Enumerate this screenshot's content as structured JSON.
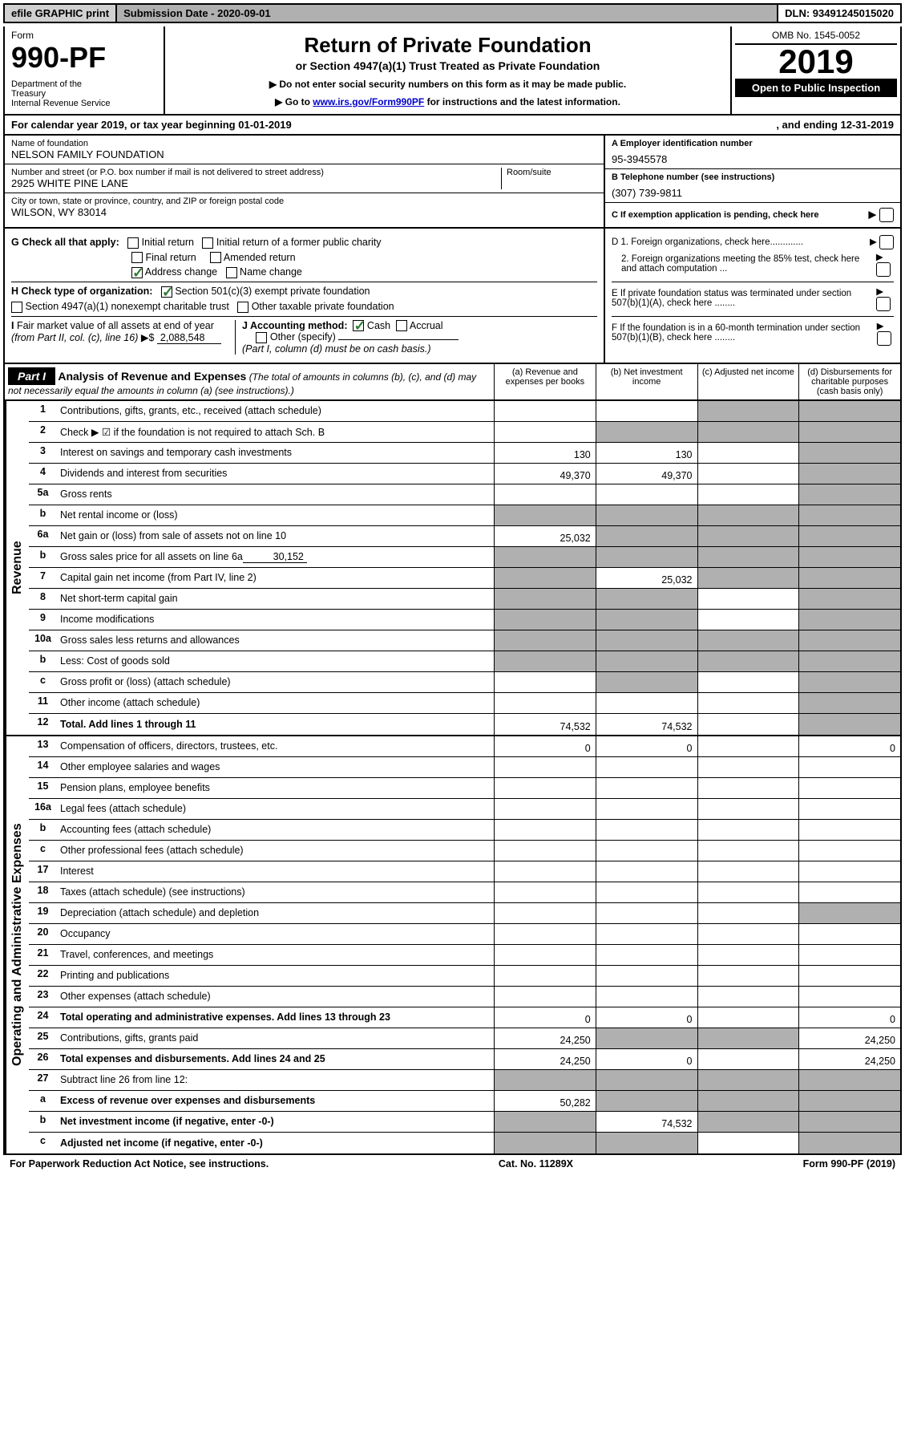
{
  "top_bar": {
    "efile": "efile GRAPHIC print",
    "submission": "Submission Date - 2020-09-01",
    "dln": "DLN: 93491245015020"
  },
  "header": {
    "form_label": "Form",
    "form_number": "990-PF",
    "dept": "Department of the Treasury\nInternal Revenue Service",
    "title": "Return of Private Foundation",
    "subtitle": "or Section 4947(a)(1) Trust Treated as Private Foundation",
    "instr1": "▶ Do not enter social security numbers on this form as it may be made public.",
    "instr2_prefix": "▶ Go to ",
    "instr2_link": "www.irs.gov/Form990PF",
    "instr2_suffix": " for instructions and the latest information.",
    "omb": "OMB No. 1545-0052",
    "year": "2019",
    "open_public": "Open to Public Inspection"
  },
  "calendar": {
    "begin_label": "For calendar year 2019, or tax year beginning ",
    "begin_date": "01-01-2019",
    "end_label": ", and ending ",
    "end_date": "12-31-2019"
  },
  "identity": {
    "name_label": "Name of foundation",
    "name": "NELSON FAMILY FOUNDATION",
    "addr_label": "Number and street (or P.O. box number if mail is not delivered to street address)",
    "addr": "2925 WHITE PINE LANE",
    "room_label": "Room/suite",
    "city_label": "City or town, state or province, country, and ZIP or foreign postal code",
    "city": "WILSON, WY  83014",
    "a_label": "A Employer identification number",
    "ein": "95-3945578",
    "b_label": "B Telephone number (see instructions)",
    "phone": "(307) 739-9811",
    "c_label": "C If exemption application is pending, check here"
  },
  "checks": {
    "g_label": "G Check all that apply:",
    "g_opts": [
      "Initial return",
      "Initial return of a former public charity",
      "Final return",
      "Amended return",
      "Address change",
      "Name change"
    ],
    "h_label": "H Check type of organization:",
    "h_opts": [
      "Section 501(c)(3) exempt private foundation",
      "Section 4947(a)(1) nonexempt charitable trust",
      "Other taxable private foundation"
    ],
    "i_label": "I Fair market value of all assets at end of year (from Part II, col. (c), line 16) ▶$",
    "i_value": "2,088,548",
    "j_label": "J Accounting method:",
    "j_opts": [
      "Cash",
      "Accrual",
      "Other (specify)"
    ],
    "j_note": "(Part I, column (d) must be on cash basis.)",
    "d1": "D 1. Foreign organizations, check here.............",
    "d2": "2. Foreign organizations meeting the 85% test, check here and attach computation ...",
    "e": "E If private foundation status was terminated under section 507(b)(1)(A), check here ........",
    "f": "F If the foundation is in a 60-month termination under section 507(b)(1)(B), check here ........"
  },
  "part1": {
    "label": "Part I",
    "title": "Analysis of Revenue and Expenses",
    "note": "(The total of amounts in columns (b), (c), and (d) may not necessarily equal the amounts in column (a) (see instructions).)",
    "col_a": "(a) Revenue and expenses per books",
    "col_b": "(b) Net investment income",
    "col_c": "(c) Adjusted net income",
    "col_d": "(d) Disbursements for charitable purposes (cash basis only)"
  },
  "revenue_label": "Revenue",
  "expenses_label": "Operating and Administrative Expenses",
  "rows": [
    {
      "n": "1",
      "d": "Contributions, gifts, grants, etc., received (attach schedule)",
      "a": "",
      "b": "",
      "c": "s",
      "dd": "s"
    },
    {
      "n": "2",
      "d": "Check ▶ ☑ if the foundation is not required to attach Sch. B",
      "a": "",
      "b": "s",
      "c": "s",
      "dd": "s"
    },
    {
      "n": "3",
      "d": "Interest on savings and temporary cash investments",
      "a": "130",
      "b": "130",
      "c": "",
      "dd": "s"
    },
    {
      "n": "4",
      "d": "Dividends and interest from securities",
      "a": "49,370",
      "b": "49,370",
      "c": "",
      "dd": "s"
    },
    {
      "n": "5a",
      "d": "Gross rents",
      "a": "",
      "b": "",
      "c": "",
      "dd": "s"
    },
    {
      "n": "b",
      "d": "Net rental income or (loss)",
      "a": "s",
      "b": "s",
      "c": "s",
      "dd": "s"
    },
    {
      "n": "6a",
      "d": "Net gain or (loss) from sale of assets not on line 10",
      "a": "25,032",
      "b": "s",
      "c": "s",
      "dd": "s"
    },
    {
      "n": "b",
      "d": "Gross sales price for all assets on line 6a ________",
      "v": "30,152",
      "a": "s",
      "b": "s",
      "c": "s",
      "dd": "s"
    },
    {
      "n": "7",
      "d": "Capital gain net income (from Part IV, line 2)",
      "a": "s",
      "b": "25,032",
      "c": "s",
      "dd": "s"
    },
    {
      "n": "8",
      "d": "Net short-term capital gain",
      "a": "s",
      "b": "s",
      "c": "",
      "dd": "s"
    },
    {
      "n": "9",
      "d": "Income modifications",
      "a": "s",
      "b": "s",
      "c": "",
      "dd": "s"
    },
    {
      "n": "10a",
      "d": "Gross sales less returns and allowances",
      "a": "s",
      "b": "s",
      "c": "s",
      "dd": "s"
    },
    {
      "n": "b",
      "d": "Less: Cost of goods sold",
      "a": "s",
      "b": "s",
      "c": "s",
      "dd": "s"
    },
    {
      "n": "c",
      "d": "Gross profit or (loss) (attach schedule)",
      "a": "",
      "b": "s",
      "c": "",
      "dd": "s"
    },
    {
      "n": "11",
      "d": "Other income (attach schedule)",
      "a": "",
      "b": "",
      "c": "",
      "dd": "s"
    },
    {
      "n": "12",
      "d": "Total. Add lines 1 through 11",
      "bold": true,
      "a": "74,532",
      "b": "74,532",
      "c": "",
      "dd": "s"
    }
  ],
  "exp_rows": [
    {
      "n": "13",
      "d": "Compensation of officers, directors, trustees, etc.",
      "a": "0",
      "b": "0",
      "c": "",
      "dd": "0"
    },
    {
      "n": "14",
      "d": "Other employee salaries and wages",
      "a": "",
      "b": "",
      "c": "",
      "dd": ""
    },
    {
      "n": "15",
      "d": "Pension plans, employee benefits",
      "a": "",
      "b": "",
      "c": "",
      "dd": ""
    },
    {
      "n": "16a",
      "d": "Legal fees (attach schedule)",
      "a": "",
      "b": "",
      "c": "",
      "dd": ""
    },
    {
      "n": "b",
      "d": "Accounting fees (attach schedule)",
      "a": "",
      "b": "",
      "c": "",
      "dd": ""
    },
    {
      "n": "c",
      "d": "Other professional fees (attach schedule)",
      "a": "",
      "b": "",
      "c": "",
      "dd": ""
    },
    {
      "n": "17",
      "d": "Interest",
      "a": "",
      "b": "",
      "c": "",
      "dd": ""
    },
    {
      "n": "18",
      "d": "Taxes (attach schedule) (see instructions)",
      "a": "",
      "b": "",
      "c": "",
      "dd": ""
    },
    {
      "n": "19",
      "d": "Depreciation (attach schedule) and depletion",
      "a": "",
      "b": "",
      "c": "",
      "dd": "s"
    },
    {
      "n": "20",
      "d": "Occupancy",
      "a": "",
      "b": "",
      "c": "",
      "dd": ""
    },
    {
      "n": "21",
      "d": "Travel, conferences, and meetings",
      "a": "",
      "b": "",
      "c": "",
      "dd": ""
    },
    {
      "n": "22",
      "d": "Printing and publications",
      "a": "",
      "b": "",
      "c": "",
      "dd": ""
    },
    {
      "n": "23",
      "d": "Other expenses (attach schedule)",
      "a": "",
      "b": "",
      "c": "",
      "dd": ""
    },
    {
      "n": "24",
      "d": "Total operating and administrative expenses. Add lines 13 through 23",
      "bold": true,
      "a": "0",
      "b": "0",
      "c": "",
      "dd": "0"
    },
    {
      "n": "25",
      "d": "Contributions, gifts, grants paid",
      "a": "24,250",
      "b": "s",
      "c": "s",
      "dd": "24,250"
    },
    {
      "n": "26",
      "d": "Total expenses and disbursements. Add lines 24 and 25",
      "bold": true,
      "a": "24,250",
      "b": "0",
      "c": "",
      "dd": "24,250"
    },
    {
      "n": "27",
      "d": "Subtract line 26 from line 12:",
      "a": "s",
      "b": "s",
      "c": "s",
      "dd": "s"
    },
    {
      "n": "a",
      "d": "Excess of revenue over expenses and disbursements",
      "bold": true,
      "a": "50,282",
      "b": "s",
      "c": "s",
      "dd": "s"
    },
    {
      "n": "b",
      "d": "Net investment income (if negative, enter -0-)",
      "bold": true,
      "a": "s",
      "b": "74,532",
      "c": "s",
      "dd": "s"
    },
    {
      "n": "c",
      "d": "Adjusted net income (if negative, enter -0-)",
      "bold": true,
      "a": "s",
      "b": "s",
      "c": "",
      "dd": "s"
    }
  ],
  "footer": {
    "left": "For Paperwork Reduction Act Notice, see instructions.",
    "center": "Cat. No. 11289X",
    "right": "Form 990-PF (2019)"
  }
}
